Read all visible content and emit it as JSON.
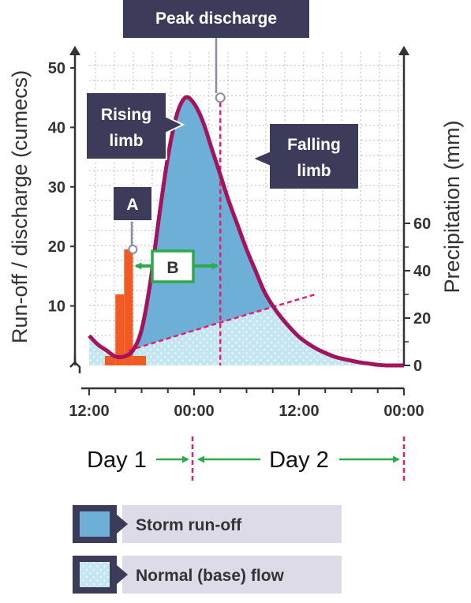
{
  "chart_data": {
    "type": "line",
    "ylabel": "Run-off / discharge (cumecs)",
    "y2label": "Precipitation (mm)",
    "ylim": [
      0,
      50
    ],
    "y2lim": [
      0,
      60
    ],
    "y_ticks": [
      "10",
      "20",
      "30",
      "40",
      "50"
    ],
    "y2_ticks": [
      "0",
      "20",
      "40",
      "60"
    ],
    "x_tick_labels": [
      "12:00",
      "00:00",
      "12:00",
      "00:00"
    ],
    "x_tick_hours": [
      0,
      12,
      24,
      36
    ],
    "xlim_hours": [
      0,
      36
    ],
    "grid": true,
    "discharge": {
      "hours": [
        0,
        1,
        2,
        3,
        4,
        5,
        6,
        7,
        8,
        9,
        10,
        11,
        12,
        13,
        14,
        15,
        16,
        17,
        18,
        19,
        20,
        21,
        22,
        23,
        24,
        25,
        26,
        27,
        28,
        29,
        30,
        31,
        32,
        33,
        34,
        35,
        36
      ],
      "values": [
        5,
        3.5,
        2.5,
        1.5,
        1.5,
        2.5,
        6,
        14,
        25,
        35,
        42,
        45,
        44,
        41,
        36.5,
        32,
        27.5,
        23.5,
        19.5,
        16,
        12.5,
        10,
        8,
        6.3,
        4.8,
        3.7,
        2.8,
        2.1,
        1.5,
        1.1,
        0.8,
        0.5,
        0.3,
        0.1,
        0,
        0,
        0
      ]
    },
    "baseflow": {
      "hours": [
        4.5,
        14.5,
        26
      ],
      "values": [
        2.5,
        7,
        12
      ]
    },
    "precipitation": {
      "unit": "mm",
      "bars": [
        {
          "start_hour": 1.8,
          "end_hour": 3,
          "value": 4
        },
        {
          "start_hour": 3,
          "end_hour": 4,
          "value": 30
        },
        {
          "start_hour": 4,
          "end_hour": 5,
          "value": 49
        },
        {
          "start_hour": 5,
          "end_hour": 6.5,
          "value": 4
        }
      ]
    },
    "peak": {
      "hour": 15,
      "value": 45
    },
    "peak_rain": {
      "hour": 5,
      "value": 19.5
    },
    "lag_time_label": "B",
    "callouts": {
      "peak": "Peak discharge",
      "rising": [
        "Rising",
        "limb"
      ],
      "falling": [
        "Falling",
        "limb"
      ],
      "a": "A"
    },
    "days": {
      "day1": "Day 1",
      "day2": "Day 2"
    },
    "legend": [
      {
        "label": "Storm run-off",
        "color": "#6dafd6"
      },
      {
        "label": "Normal (base) flow",
        "color": "#c4e6f2"
      }
    ],
    "colors": {
      "discharge_line": "#a3145c",
      "storm_runoff": "#6dafd6",
      "baseflow": "#c4e6f2",
      "rain_bars": "#f15a22",
      "callout": "#3c3b5a",
      "arrow": "#2bab4a",
      "dashed": "#e0206f",
      "legend_strip": "#dddbe8"
    }
  }
}
